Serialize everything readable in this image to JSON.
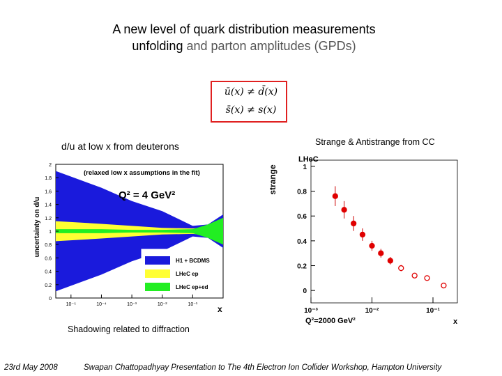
{
  "title": {
    "line1": "A new level of quark distribution measurements",
    "line2_a": "unfolding",
    "line2_b": " and parton amplitudes (GPDs)"
  },
  "formulas": [
    "ū(x) ≠ d̄(x)",
    "s̄(x) ≠ s(x)"
  ],
  "captions": {
    "strange": "Strange & Antistrange from CC",
    "shadowing": "Shadowing related to diffraction"
  },
  "footer": {
    "date": "23rd May 2008",
    "presenter": "Swapan Chattopadhyay  Presentation to The 4th Electron Ion Collider Workshop, Hampton University"
  },
  "chart_data": [
    {
      "type": "area",
      "title": "d/u at low x from deuterons",
      "ylabel": "uncertainty on d/u",
      "xlabel": "x",
      "annotation": "(relaxed low x assumptions in the fit)",
      "annotation2": "Q² = 4 GeV²",
      "x_ticks": [
        "10⁻⁵",
        "10⁻⁴",
        "10⁻³",
        "10⁻²",
        "10⁻¹"
      ],
      "x_log_range": [
        -5.5,
        0
      ],
      "y_ticks": [
        "0",
        "0.2",
        "0.4",
        "0.6",
        "0.8",
        "1",
        "1.2",
        "1.4",
        "1.6",
        "1.8",
        "2"
      ],
      "ylim": [
        0,
        2
      ],
      "series": [
        {
          "name": "H1 + BCDMS",
          "color": "#1a1adc",
          "x_log": [
            -5.5,
            -4,
            -3,
            -2,
            -1,
            -0.5,
            0
          ],
          "upper": [
            1.9,
            1.65,
            1.45,
            1.3,
            1.08,
            1.1,
            1.25
          ],
          "lower": [
            0.1,
            0.35,
            0.55,
            0.7,
            0.92,
            0.9,
            0.75
          ]
        },
        {
          "name": "LHeC ep",
          "color": "#ffff33",
          "x_log": [
            -5.5,
            -4,
            -3,
            -2,
            -1,
            -0.5,
            0
          ],
          "upper": [
            1.15,
            1.11,
            1.08,
            1.05,
            1.04,
            1.06,
            1.07
          ],
          "lower": [
            0.85,
            0.89,
            0.92,
            0.95,
            0.96,
            0.94,
            0.93
          ]
        },
        {
          "name": "LHeC ep+ed",
          "color": "#22ee22",
          "x_log": [
            -5.5,
            -4,
            -3,
            -2,
            -1,
            -0.5,
            0
          ],
          "upper": [
            1.03,
            1.03,
            1.02,
            1.02,
            1.03,
            1.1,
            1.2
          ],
          "lower": [
            0.97,
            0.97,
            0.98,
            0.98,
            0.97,
            0.9,
            0.8
          ]
        }
      ]
    },
    {
      "type": "scatter",
      "label": "LHeC",
      "ylabel": "strange",
      "xlabel": "x",
      "q2_label": "Q²=2000 GeV²",
      "x_ticks": [
        "10⁻³",
        "10⁻²",
        "10⁻¹"
      ],
      "x_log_range": [
        -3,
        -0.6
      ],
      "y_ticks": [
        "0",
        "0.2",
        "0.4",
        "0.6",
        "0.8",
        "1"
      ],
      "ylim": [
        -0.1,
        1.05
      ],
      "points": [
        {
          "x": 0.0025,
          "y": 0.76,
          "err": 0.08,
          "filled": true
        },
        {
          "x": 0.0035,
          "y": 0.65,
          "err": 0.07,
          "filled": true
        },
        {
          "x": 0.005,
          "y": 0.54,
          "err": 0.06,
          "filled": true
        },
        {
          "x": 0.007,
          "y": 0.45,
          "err": 0.05,
          "filled": true
        },
        {
          "x": 0.01,
          "y": 0.36,
          "err": 0.04,
          "filled": true
        },
        {
          "x": 0.014,
          "y": 0.3,
          "err": 0.035,
          "filled": true
        },
        {
          "x": 0.02,
          "y": 0.24,
          "err": 0.03,
          "filled": true
        },
        {
          "x": 0.03,
          "y": 0.18,
          "err": 0.025,
          "filled": false
        },
        {
          "x": 0.05,
          "y": 0.12,
          "err": 0.02,
          "filled": false
        },
        {
          "x": 0.08,
          "y": 0.1,
          "err": 0.015,
          "filled": false
        },
        {
          "x": 0.15,
          "y": 0.04,
          "err": 0.0,
          "filled": false
        }
      ]
    }
  ]
}
